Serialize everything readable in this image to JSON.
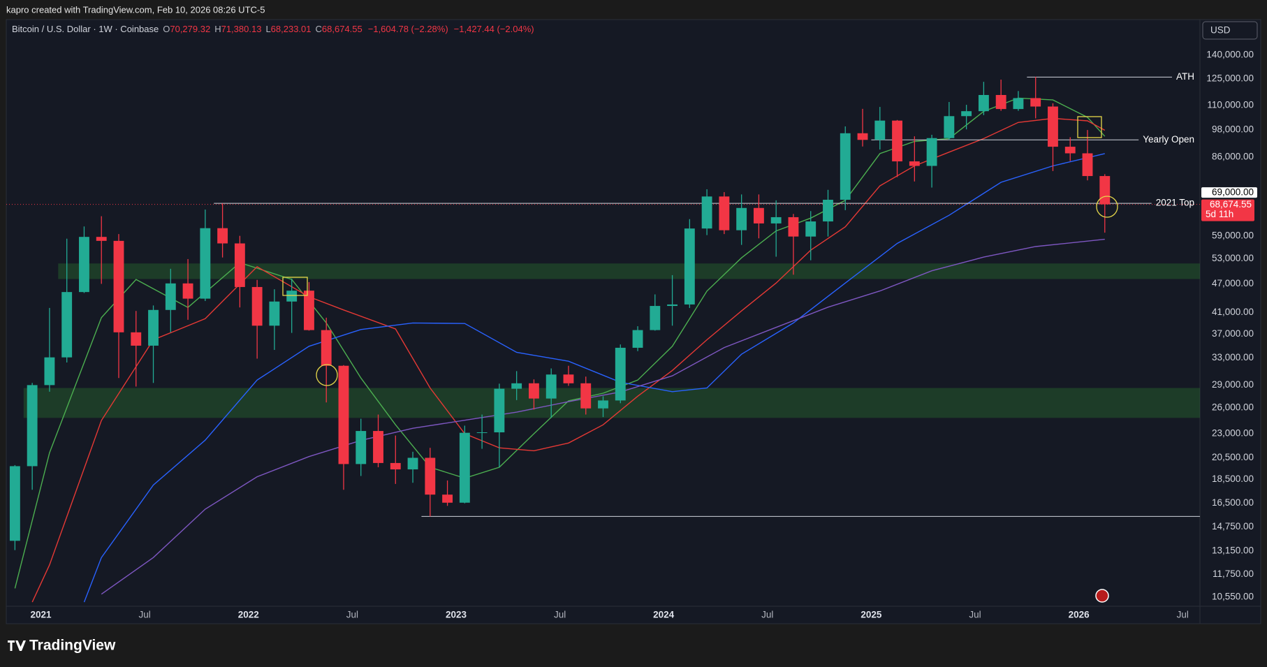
{
  "header": {
    "attribution": "kapro created with TradingView.com, Feb 10, 2026 08:26 UTC-5"
  },
  "legend": {
    "symbol": "Bitcoin / U.S. Dollar · 1W · Coinbase",
    "ohlc": [
      {
        "key": "O",
        "value": "70,279.32"
      },
      {
        "key": "H",
        "value": "71,380.13"
      },
      {
        "key": "L",
        "value": "68,233.01"
      },
      {
        "key": "C",
        "value": "68,674.55"
      }
    ],
    "change": "−1,604.78 (−2.28%)",
    "change_alt": "−1,427.44 (−2.04%)"
  },
  "currency": "USD",
  "chart_data": {
    "type": "candlestick",
    "log_scale": true,
    "grid": false,
    "up_color": "#22ab94",
    "down_color": "#f23645",
    "x": [
      "2020-11",
      "2020-12",
      "2021-01",
      "2021-02",
      "2021-03",
      "2021-04",
      "2021-05",
      "2021-06",
      "2021-07",
      "2021-08",
      "2021-09",
      "2021-10",
      "2021-11",
      "2021-12",
      "2022-01",
      "2022-02",
      "2022-03",
      "2022-04",
      "2022-05",
      "2022-06",
      "2022-07",
      "2022-08",
      "2022-09",
      "2022-10",
      "2022-11",
      "2022-12",
      "2023-01",
      "2023-02",
      "2023-03",
      "2023-04",
      "2023-05",
      "2023-06",
      "2023-07",
      "2023-08",
      "2023-09",
      "2023-10",
      "2023-11",
      "2023-12",
      "2024-01",
      "2024-02",
      "2024-03",
      "2024-04",
      "2024-05",
      "2024-06",
      "2024-07",
      "2024-08",
      "2024-09",
      "2024-10",
      "2024-11",
      "2024-12",
      "2025-01",
      "2025-02",
      "2025-03",
      "2025-04",
      "2025-05",
      "2025-06",
      "2025-07",
      "2025-08",
      "2025-09",
      "2025-10",
      "2025-11",
      "2025-12",
      "2026-01",
      "2026-02"
    ],
    "open": [
      13800,
      19700,
      29000,
      33100,
      45200,
      58800,
      57700,
      37300,
      35000,
      41500,
      47100,
      43800,
      61300,
      57000,
      46300,
      38500,
      43200,
      45500,
      37700,
      31800,
      19900,
      23300,
      20000,
      19400,
      20500,
      17200,
      16550,
      23100,
      23150,
      28500,
      29250,
      27200,
      30500,
      29250,
      25950,
      26950,
      34650,
      37700,
      42300,
      42600,
      61200,
      71300,
      60700,
      67500,
      62700,
      64600,
      58900,
      63300,
      70200,
      96400,
      93400,
      102400,
      84300,
      82500,
      94200,
      104600,
      107100,
      115700,
      108200,
      114000,
      109500,
      90400,
      87600,
      78600
    ],
    "high": [
      19800,
      29300,
      41900,
      58300,
      61800,
      64900,
      59600,
      41300,
      42400,
      50500,
      52900,
      67000,
      69000,
      59100,
      47900,
      45800,
      48200,
      47400,
      40000,
      31900,
      24700,
      25200,
      22800,
      21100,
      21500,
      18400,
      23900,
      25200,
      29200,
      31000,
      29800,
      31400,
      31800,
      30200,
      27500,
      35200,
      38400,
      44700,
      49000,
      64000,
      73800,
      72800,
      72000,
      72000,
      70000,
      65600,
      66500,
      73600,
      99600,
      108300,
      109300,
      102700,
      95000,
      95700,
      111900,
      110400,
      123200,
      124500,
      117900,
      126200,
      111200,
      94600,
      97900,
      79300
    ],
    "low": [
      13200,
      17600,
      28100,
      32300,
      45000,
      47000,
      30000,
      28800,
      29300,
      37300,
      39600,
      43300,
      53300,
      42000,
      32900,
      34300,
      37200,
      37600,
      26700,
      17600,
      18800,
      19600,
      18100,
      18200,
      15500,
      16300,
      16500,
      21400,
      19600,
      27000,
      25800,
      24800,
      28900,
      25200,
      24900,
      26600,
      34100,
      37600,
      38500,
      41900,
      59300,
      59600,
      56600,
      58400,
      53500,
      49100,
      52600,
      58900,
      66800,
      90500,
      89200,
      78200,
      76600,
      74400,
      93400,
      98200,
      105100,
      107300,
      107300,
      103500,
      80500,
      84400,
      77000,
      60000
    ],
    "close": [
      19700,
      29000,
      33100,
      45200,
      58800,
      57700,
      37300,
      35000,
      41500,
      47100,
      43800,
      61300,
      57000,
      46300,
      38500,
      43200,
      45500,
      37700,
      31800,
      19900,
      23300,
      20000,
      19400,
      20500,
      17200,
      16550,
      23100,
      23150,
      28500,
      29250,
      27200,
      30500,
      29250,
      25950,
      26950,
      34650,
      37700,
      42300,
      42600,
      61200,
      71300,
      60700,
      67500,
      62700,
      64600,
      58900,
      63300,
      70200,
      96400,
      93400,
      102400,
      84300,
      82500,
      94200,
      104600,
      107100,
      115700,
      108200,
      114000,
      109500,
      90400,
      87600,
      78600,
      68674.55
    ],
    "xlim": [
      "2020-11",
      "2026-08"
    ],
    "ylim": [
      10100,
      165800
    ],
    "yticks": [
      {
        "value": 10550,
        "label": "10,550.00"
      },
      {
        "value": 11750,
        "label": "11,750.00"
      },
      {
        "value": 13150,
        "label": "13,150.00"
      },
      {
        "value": 14750,
        "label": "14,750.00"
      },
      {
        "value": 16500,
        "label": "16,500.00"
      },
      {
        "value": 18500,
        "label": "18,500.00"
      },
      {
        "value": 20500,
        "label": "20,500.00"
      },
      {
        "value": 23000,
        "label": "23,000.00"
      },
      {
        "value": 26000,
        "label": "26,000.00"
      },
      {
        "value": 29000,
        "label": "29,000.00"
      },
      {
        "value": 33000,
        "label": "33,000.00"
      },
      {
        "value": 37000,
        "label": "37,000.00"
      },
      {
        "value": 41000,
        "label": "41,000.00"
      },
      {
        "value": 47000,
        "label": "47,000.00"
      },
      {
        "value": 53000,
        "label": "53,000.00"
      },
      {
        "value": 59000,
        "label": "59,000.00"
      },
      {
        "value": 86000,
        "label": "86,000.00"
      },
      {
        "value": 98000,
        "label": "98,000.00"
      },
      {
        "value": 110000,
        "label": "110,000.00"
      },
      {
        "value": 125000,
        "label": "125,000.00"
      },
      {
        "value": 140000,
        "label": "140,000.00"
      }
    ],
    "xticks": [
      {
        "value": "2021-01",
        "label": "2021"
      },
      {
        "value": "2021-07",
        "label": "Jul"
      },
      {
        "value": "2022-01",
        "label": "2022"
      },
      {
        "value": "2022-07",
        "label": "Jul"
      },
      {
        "value": "2023-01",
        "label": "2023"
      },
      {
        "value": "2023-07",
        "label": "Jul"
      },
      {
        "value": "2024-01",
        "label": "2024"
      },
      {
        "value": "2024-07",
        "label": "Jul"
      },
      {
        "value": "2025-01",
        "label": "2025"
      },
      {
        "value": "2025-07",
        "label": "Jul"
      },
      {
        "value": "2026-01",
        "label": "2026"
      },
      {
        "value": "2026-07",
        "label": "Jul"
      }
    ],
    "moving_averages": [
      {
        "color": "#4caf50",
        "x": [
          "2020-11",
          "2021-01",
          "2021-04",
          "2021-06",
          "2021-09",
          "2021-12",
          "2022-03",
          "2022-05",
          "2022-07",
          "2022-09",
          "2022-11",
          "2023-01",
          "2023-03",
          "2023-05",
          "2023-07",
          "2023-09",
          "2023-11",
          "2024-01",
          "2024-03",
          "2024-05",
          "2024-07",
          "2024-09",
          "2024-11",
          "2025-01",
          "2025-03",
          "2025-05",
          "2025-07",
          "2025-09",
          "2025-11",
          "2026-01",
          "2026-02"
        ],
        "values": [
          11000,
          21000,
          40000,
          48000,
          42000,
          52000,
          48000,
          39000,
          30000,
          24000,
          19600,
          18600,
          19600,
          23000,
          26900,
          27900,
          29700,
          34900,
          45400,
          53200,
          60500,
          64300,
          70000,
          87500,
          92700,
          94000,
          107000,
          114000,
          113000,
          104000,
          95000
        ]
      },
      {
        "color": "#e53935",
        "x": [
          "2020-12",
          "2021-01",
          "2021-04",
          "2021-07",
          "2021-10",
          "2022-01",
          "2022-04",
          "2022-06",
          "2022-09",
          "2022-11",
          "2023-01",
          "2023-03",
          "2023-05",
          "2023-07",
          "2023-09",
          "2023-11",
          "2024-01",
          "2024-03",
          "2024-05",
          "2024-07",
          "2024-09",
          "2024-11",
          "2025-01",
          "2025-03",
          "2025-05",
          "2025-07",
          "2025-09",
          "2025-11",
          "2026-01",
          "2026-02"
        ],
        "values": [
          10300,
          12300,
          24500,
          36000,
          39800,
          51000,
          44200,
          41500,
          37900,
          28600,
          23000,
          21500,
          21200,
          22000,
          24000,
          27500,
          31100,
          36000,
          41300,
          47200,
          55200,
          61700,
          75000,
          82500,
          88100,
          94000,
          101500,
          103500,
          102300,
          97800
        ]
      },
      {
        "color": "#2962ff",
        "x": [
          "2021-03",
          "2021-04",
          "2021-07",
          "2021-10",
          "2022-01",
          "2022-04",
          "2022-07",
          "2022-10",
          "2023-01",
          "2023-04",
          "2023-07",
          "2023-10",
          "2024-01",
          "2024-03",
          "2024-05",
          "2024-08",
          "2024-11",
          "2025-02",
          "2025-05",
          "2025-08",
          "2025-11",
          "2026-02"
        ],
        "values": [
          10300,
          12740,
          18000,
          22300,
          29700,
          34900,
          37800,
          39000,
          38900,
          33900,
          32500,
          29400,
          28100,
          28600,
          33600,
          39000,
          47200,
          57000,
          65200,
          76300,
          82500,
          87500
        ]
      },
      {
        "color": "#7e57c2",
        "x": [
          "2021-04",
          "2021-07",
          "2021-10",
          "2022-01",
          "2022-04",
          "2022-07",
          "2022-10",
          "2023-01",
          "2023-04",
          "2023-07",
          "2023-10",
          "2024-01",
          "2024-04",
          "2024-07",
          "2024-10",
          "2025-01",
          "2025-04",
          "2025-07",
          "2025-10",
          "2026-02"
        ],
        "values": [
          10700,
          12740,
          16050,
          18730,
          20620,
          22270,
          23600,
          24520,
          25490,
          26800,
          28070,
          30310,
          34690,
          38190,
          42060,
          45430,
          50030,
          53400,
          56160,
          58140
        ]
      }
    ],
    "zones": [
      {
        "from": 48100,
        "to": 51800,
        "start": "2021-02",
        "color": "#2e7d32"
      },
      {
        "from": 24800,
        "to": 28600,
        "start": "2020-12",
        "color": "#2e7d32"
      }
    ],
    "levels": [
      {
        "label": "ATH",
        "price": 126000,
        "start": "2025-10"
      },
      {
        "label": "Yearly Open",
        "price": 93400,
        "start": "2025-01"
      },
      {
        "label": "2021 Top",
        "price": 69000,
        "start": "2021-11",
        "price_label": "69,000.00"
      },
      {
        "price": 15500,
        "start": "2022-11"
      }
    ],
    "last_price": 68674.55,
    "last_price_label": "68,674.55",
    "countdown": "5d 11h"
  },
  "footer": {
    "brand": "TradingView"
  }
}
